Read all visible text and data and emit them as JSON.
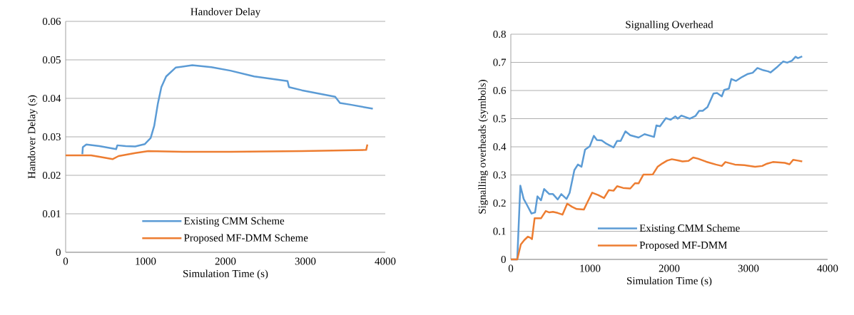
{
  "chart_data": [
    {
      "type": "line",
      "title": "Handover Delay",
      "xlabel": "Simulation Time (s)",
      "ylabel": "Handover Delay (s)",
      "xlim": [
        0,
        4000
      ],
      "xticks": [
        0,
        1000,
        2000,
        3000,
        4000
      ],
      "ylim": [
        0,
        0.06
      ],
      "yticks": [
        0,
        0.01,
        0.02,
        0.03,
        0.04,
        0.05,
        0.06
      ],
      "grid": "y",
      "legend": "bottom",
      "marker": "none",
      "line_style": "solid",
      "series": [
        {
          "name": "Existing CMM Scheme",
          "color": "#5b9bd5",
          "x": [
            209,
            215,
            259,
            423,
            632,
            647,
            751,
            870,
            989,
            1064,
            1109,
            1153,
            1198,
            1258,
            1377,
            1585,
            1824,
            2062,
            2360,
            2777,
            2795,
            2956,
            3373,
            3433,
            3552,
            3844
          ],
          "values": [
            0.0255,
            0.0273,
            0.028,
            0.0276,
            0.0268,
            0.0278,
            0.0276,
            0.0275,
            0.0281,
            0.0297,
            0.0329,
            0.0385,
            0.0429,
            0.0457,
            0.048,
            0.0486,
            0.0481,
            0.0472,
            0.0457,
            0.0445,
            0.0429,
            0.0421,
            0.0404,
            0.0388,
            0.0384,
            0.0373
          ]
        },
        {
          "name": "Proposed MF-DMM Scheme",
          "color": "#ed7d31",
          "x": [
            0,
            319,
            423,
            587,
            662,
            870,
            1034,
            1466,
            2062,
            2956,
            3761,
            3776
          ],
          "values": [
            0.0252,
            0.0252,
            0.0248,
            0.0242,
            0.025,
            0.0258,
            0.0263,
            0.0261,
            0.0261,
            0.0263,
            0.0266,
            0.028
          ]
        }
      ]
    },
    {
      "type": "line",
      "title": "Signalling Overhead",
      "xlabel": "Simulation Time (s)",
      "ylabel": "Signalling overheads (symbols)",
      "xlim": [
        0,
        4000
      ],
      "xticks": [
        0,
        1000,
        2000,
        3000,
        4000
      ],
      "ylim": [
        0,
        0.8
      ],
      "yticks": [
        0,
        0.1,
        0.2,
        0.3,
        0.4,
        0.5,
        0.6,
        0.7,
        0.8
      ],
      "grid": "y",
      "legend": "bottom",
      "marker": "none",
      "line_style": "solid",
      "series": [
        {
          "name": "Existing CMM Scheme",
          "color": "#5b9bd5",
          "x": [
            0,
            81,
            120,
            162,
            201,
            261,
            306,
            336,
            381,
            420,
            486,
            532,
            592,
            637,
            703,
            742,
            802,
            847,
            892,
            937,
            997,
            1048,
            1087,
            1147,
            1207,
            1297,
            1342,
            1387,
            1447,
            1508,
            1613,
            1688,
            1808,
            1838,
            1883,
            1958,
            2018,
            2078,
            2108,
            2153,
            2258,
            2333,
            2378,
            2423,
            2483,
            2559,
            2604,
            2664,
            2694,
            2754,
            2784,
            2844,
            2919,
            2994,
            3054,
            3114,
            3189,
            3249,
            3279,
            3369,
            3438,
            3490,
            3550,
            3595,
            3625,
            3679
          ],
          "values": [
            0,
            0,
            0.262,
            0.215,
            0.195,
            0.163,
            0.167,
            0.224,
            0.21,
            0.25,
            0.232,
            0.232,
            0.213,
            0.232,
            0.215,
            0.236,
            0.317,
            0.337,
            0.329,
            0.39,
            0.402,
            0.439,
            0.424,
            0.423,
            0.411,
            0.398,
            0.421,
            0.421,
            0.455,
            0.441,
            0.433,
            0.445,
            0.435,
            0.476,
            0.473,
            0.502,
            0.496,
            0.508,
            0.5,
            0.511,
            0.5,
            0.51,
            0.528,
            0.528,
            0.541,
            0.589,
            0.591,
            0.579,
            0.602,
            0.607,
            0.641,
            0.634,
            0.648,
            0.659,
            0.663,
            0.68,
            0.672,
            0.668,
            0.664,
            0.685,
            0.703,
            0.699,
            0.706,
            0.72,
            0.715,
            0.721
          ]
        },
        {
          "name": "Proposed MF-DMM",
          "color": "#ed7d31",
          "x": [
            0,
            81,
            126,
            171,
            216,
            246,
            267,
            300,
            336,
            381,
            441,
            486,
            532,
            592,
            652,
            712,
            772,
            832,
            922,
            967,
            1027,
            1102,
            1177,
            1237,
            1297,
            1342,
            1417,
            1508,
            1568,
            1613,
            1673,
            1748,
            1793,
            1853,
            1913,
            1973,
            2033,
            2108,
            2168,
            2243,
            2303,
            2363,
            2468,
            2589,
            2664,
            2709,
            2829,
            2949,
            3084,
            3174,
            3234,
            3309,
            3459,
            3519,
            3565,
            3625,
            3679
          ],
          "values": [
            0,
            0,
            0.053,
            0.069,
            0.081,
            0.077,
            0.072,
            0.146,
            0.146,
            0.146,
            0.172,
            0.167,
            0.169,
            0.165,
            0.159,
            0.198,
            0.187,
            0.179,
            0.177,
            0.203,
            0.237,
            0.229,
            0.218,
            0.246,
            0.244,
            0.26,
            0.254,
            0.252,
            0.271,
            0.27,
            0.301,
            0.301,
            0.302,
            0.329,
            0.341,
            0.351,
            0.356,
            0.352,
            0.348,
            0.35,
            0.362,
            0.358,
            0.347,
            0.337,
            0.332,
            0.346,
            0.337,
            0.335,
            0.329,
            0.332,
            0.34,
            0.346,
            0.343,
            0.338,
            0.354,
            0.351,
            0.348
          ]
        }
      ]
    }
  ]
}
